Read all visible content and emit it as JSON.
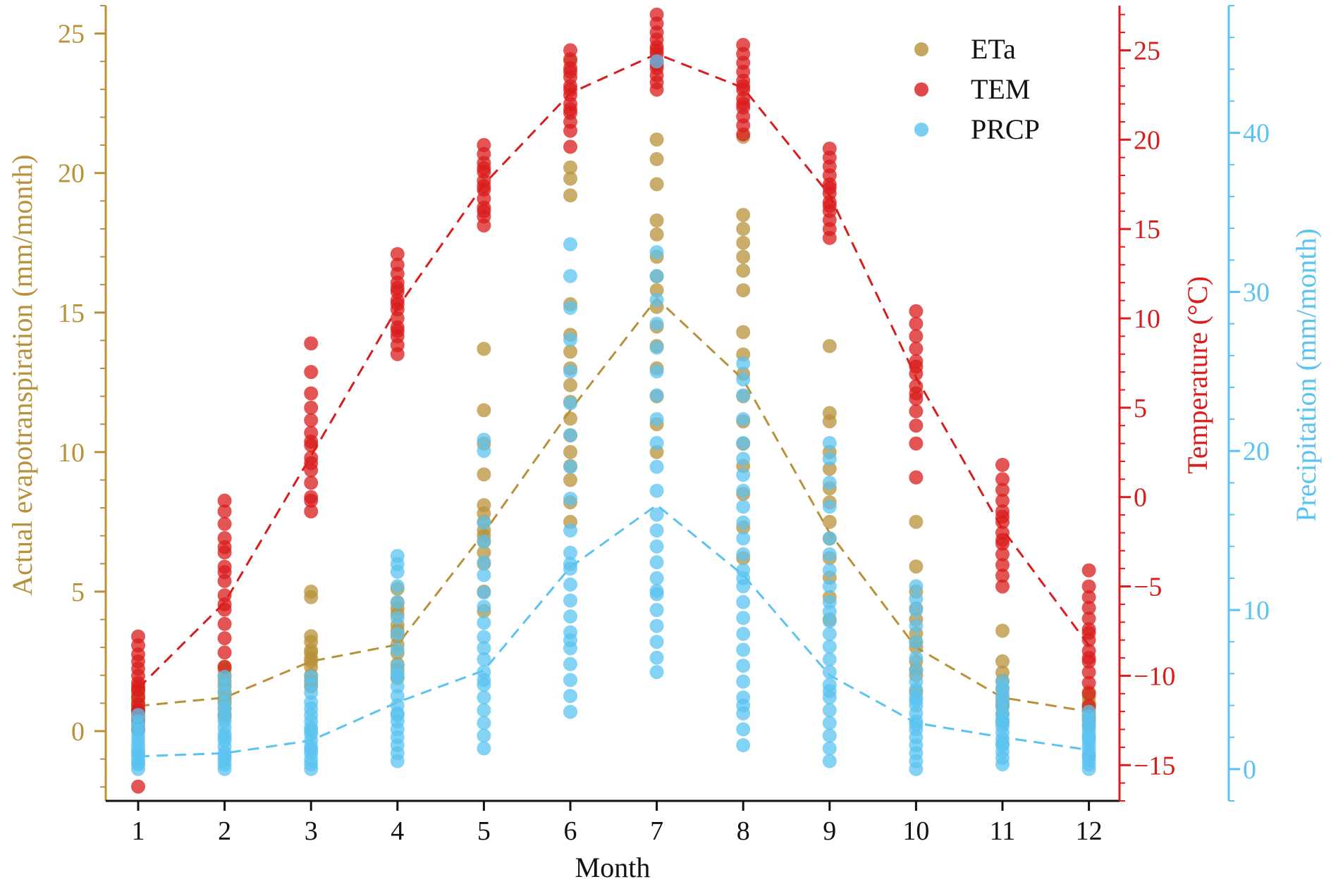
{
  "chart_data": {
    "type": "scatter",
    "xlabel": "Month",
    "x": [
      1,
      2,
      3,
      4,
      5,
      6,
      7,
      8,
      9,
      10,
      11,
      12
    ],
    "axes": {
      "left": {
        "label": "Actual evapotranspiration (mm/month)",
        "range": [
          -2.5,
          26
        ],
        "ticks": [
          0,
          5,
          10,
          15,
          20,
          25
        ],
        "minor_step": 1,
        "color": "#B8913A"
      },
      "right1": {
        "label": "Temperature (°C)",
        "range": [
          -17,
          27.5
        ],
        "ticks": [
          -15,
          -10,
          -5,
          0,
          5,
          10,
          15,
          20,
          25
        ],
        "tick_labels": [
          "−15",
          "−10",
          "−5",
          "0",
          "5",
          "10",
          "15",
          "20",
          "25"
        ],
        "minor_step": 1,
        "color": "#D91C1C"
      },
      "right2": {
        "label": "Precipitation (mm/month)",
        "range": [
          -2,
          48
        ],
        "ticks": [
          0,
          10,
          20,
          30,
          40
        ],
        "minor_step": 2,
        "color": "#5BC3F0"
      }
    },
    "legend": {
      "placement": "top-right"
    },
    "series": [
      {
        "name": "ETa",
        "axis": "left",
        "color": "#B8913A",
        "mean": [
          0.9,
          1.2,
          2.5,
          3.1,
          7.1,
          11.5,
          15.5,
          12.6,
          7.1,
          3.0,
          1.2,
          0.7
        ],
        "points": [
          [
            0.3,
            0.5,
            0.7,
            0.8,
            1.0,
            1.1,
            1.2,
            1.3,
            1.5,
            0.6,
            0.9,
            1.4
          ],
          [
            0.5,
            0.8,
            1.0,
            1.2,
            1.4,
            1.6,
            1.8,
            2.0,
            2.2,
            2.3,
            0.6,
            1.1
          ],
          [
            1.6,
            2.0,
            2.3,
            2.6,
            2.9,
            3.2,
            3.4,
            4.8,
            5.0,
            1.8,
            2.5,
            2.8
          ],
          [
            1.9,
            2.4,
            2.8,
            3.1,
            3.4,
            3.8,
            4.2,
            4.6,
            5.1,
            2.2,
            3.6,
            4.4
          ],
          [
            4.3,
            5.0,
            6.0,
            6.4,
            6.8,
            7.2,
            7.5,
            7.8,
            8.1,
            9.2,
            10.3,
            11.5,
            13.7,
            7.0
          ],
          [
            7.5,
            8.2,
            9.0,
            9.5,
            10.0,
            10.6,
            11.2,
            11.8,
            12.4,
            13.0,
            13.6,
            14.2,
            15.3,
            19.2,
            19.8,
            20.2,
            24.0
          ],
          [
            10.0,
            11.0,
            12.0,
            13.0,
            13.8,
            14.5,
            15.2,
            15.8,
            16.3,
            17.0,
            17.8,
            18.3,
            19.6,
            20.5,
            21.2
          ],
          [
            6.2,
            7.3,
            8.5,
            9.5,
            10.3,
            11.1,
            12.0,
            12.8,
            13.5,
            14.3,
            15.8,
            16.5,
            17.0,
            17.5,
            18.0,
            18.5,
            21.3
          ],
          [
            4.0,
            4.8,
            5.5,
            6.2,
            6.9,
            7.5,
            8.2,
            8.7,
            9.4,
            10.0,
            11.1,
            11.4,
            13.8
          ],
          [
            1.4,
            2.0,
            2.5,
            3.0,
            3.5,
            4.0,
            4.4,
            5.0,
            5.9,
            7.5,
            2.2,
            3.2
          ],
          [
            0.3,
            0.6,
            0.9,
            1.2,
            1.5,
            1.8,
            2.1,
            2.5,
            3.6,
            1.0
          ],
          [
            0.2,
            0.4,
            0.6,
            0.8,
            1.0,
            1.2,
            1.4,
            0.5,
            0.9
          ]
        ]
      },
      {
        "name": "TEM",
        "axis": "right1",
        "color": "#D91C1C",
        "mean": [
          -10.7,
          -5.9,
          2.3,
          10.6,
          17.5,
          22.6,
          24.8,
          22.9,
          16.9,
          6.7,
          -1.8,
          -8.3
        ],
        "points": [
          [
            -13.0,
            -12.5,
            -12.0,
            -11.6,
            -11.2,
            -10.8,
            -10.4,
            -10.0,
            -9.6,
            -9.2,
            -8.8,
            -8.3,
            -7.8,
            -16.2,
            -11.9,
            -10.6
          ],
          [
            -9.5,
            -8.7,
            -7.9,
            -7.1,
            -6.3,
            -5.5,
            -4.7,
            -3.9,
            -3.1,
            -2.3,
            -1.5,
            -0.8,
            -0.2,
            -6.0,
            -4.2,
            -2.8
          ],
          [
            -0.8,
            0.0,
            0.8,
            1.5,
            2.2,
            2.9,
            3.6,
            4.3,
            5.0,
            5.8,
            7.0,
            8.6,
            -0.2,
            1.9,
            3.1
          ],
          [
            8.0,
            8.5,
            9.0,
            9.5,
            10.0,
            10.5,
            11.0,
            11.5,
            12.0,
            12.5,
            13.0,
            13.6,
            9.3,
            10.8,
            11.7
          ],
          [
            15.2,
            15.7,
            16.2,
            16.7,
            17.2,
            17.7,
            18.2,
            18.7,
            19.2,
            19.7,
            16.0,
            17.4,
            18.4
          ],
          [
            20.5,
            21.0,
            21.5,
            22.0,
            22.5,
            23.0,
            23.5,
            24.0,
            24.5,
            25.0,
            19.6,
            21.7,
            22.8,
            23.8
          ],
          [
            22.8,
            23.2,
            23.6,
            24.0,
            24.4,
            24.8,
            25.2,
            25.6,
            26.0,
            26.5,
            27.0,
            24.2,
            25.0
          ],
          [
            20.3,
            20.8,
            21.3,
            21.8,
            22.3,
            22.8,
            23.3,
            23.8,
            24.3,
            24.8,
            25.3,
            22.0,
            23.0
          ],
          [
            14.5,
            15.0,
            15.5,
            16.0,
            16.5,
            17.0,
            17.5,
            18.0,
            18.5,
            19.0,
            19.5,
            16.3,
            17.3
          ],
          [
            3.0,
            4.0,
            4.8,
            5.5,
            6.2,
            6.9,
            7.6,
            8.3,
            9.0,
            9.7,
            10.4,
            1.1,
            5.8,
            7.3
          ],
          [
            -5.0,
            -4.4,
            -3.8,
            -3.2,
            -2.6,
            -2.0,
            -1.4,
            -0.8,
            -0.2,
            0.4,
            1.0,
            1.8,
            -2.4,
            -1.1
          ],
          [
            -11.7,
            -11.0,
            -10.4,
            -9.8,
            -9.2,
            -8.6,
            -8.0,
            -7.4,
            -6.8,
            -6.2,
            -5.6,
            -5.0,
            -4.1,
            -9.0,
            -7.6
          ]
        ]
      },
      {
        "name": "PRCP",
        "axis": "right2",
        "color": "#5BC3F0",
        "mean": [
          0.8,
          1.0,
          1.8,
          4.2,
          6.2,
          12.7,
          16.6,
          12.2,
          5.9,
          2.9,
          2.0,
          1.2
        ],
        "points": [
          [
            0.0,
            0.3,
            0.6,
            0.9,
            1.2,
            1.5,
            1.8,
            2.1,
            2.4,
            2.7,
            3.0,
            3.4,
            1.0,
            0.4
          ],
          [
            0.0,
            0.3,
            0.6,
            1.0,
            1.4,
            1.8,
            2.2,
            2.6,
            3.0,
            3.4,
            3.8,
            4.2,
            4.8,
            5.3,
            5.8,
            0.8,
            2.0
          ],
          [
            0.0,
            0.3,
            0.6,
            1.0,
            1.4,
            1.8,
            2.2,
            2.6,
            3.0,
            3.4,
            3.8,
            4.2,
            4.8,
            5.3,
            5.8,
            1.2,
            2.4
          ],
          [
            0.5,
            1.0,
            1.5,
            2.0,
            2.5,
            3.0,
            3.5,
            4.0,
            4.6,
            5.2,
            5.8,
            6.5,
            7.5,
            8.5,
            9.5,
            10.5,
            11.5,
            12.4,
            12.9,
            13.4,
            3.4,
            6.0
          ],
          [
            1.3,
            2.1,
            2.9,
            3.7,
            4.5,
            5.3,
            6.1,
            6.9,
            7.6,
            8.3,
            9.2,
            10.2,
            11.1,
            12.2,
            13.0,
            14.3,
            15.5,
            20.0,
            20.7,
            5.6
          ],
          [
            3.6,
            4.6,
            5.6,
            6.6,
            7.6,
            8.6,
            9.6,
            10.6,
            11.6,
            12.6,
            13.6,
            15.0,
            17.0,
            19.0,
            21.0,
            23.0,
            25.0,
            27.0,
            29.0,
            31.0,
            33.0,
            12.9,
            8.1
          ],
          [
            6.1,
            7.0,
            8.0,
            9.0,
            10.0,
            11.0,
            12.0,
            13.0,
            14.0,
            15.0,
            16.0,
            17.5,
            19.0,
            20.5,
            22.0,
            23.5,
            25.0,
            26.5,
            28.0,
            29.5,
            31.0,
            32.5,
            44.5,
            11.2
          ],
          [
            1.5,
            2.5,
            3.5,
            4.5,
            5.5,
            6.5,
            7.5,
            8.5,
            9.5,
            10.5,
            11.5,
            12.5,
            13.5,
            14.5,
            15.5,
            16.5,
            17.5,
            18.5,
            19.5,
            20.5,
            22.0,
            23.5,
            24.5,
            25.5,
            4.0,
            12.0
          ],
          [
            0.5,
            1.3,
            2.1,
            2.9,
            3.7,
            4.5,
            5.3,
            6.1,
            6.9,
            7.7,
            8.5,
            9.3,
            10.5,
            11.5,
            12.5,
            13.5,
            14.5,
            16.5,
            18.0,
            19.5,
            20.5,
            4.9,
            9.9
          ],
          [
            0.0,
            0.5,
            1.0,
            1.5,
            2.0,
            2.5,
            3.0,
            3.5,
            4.0,
            4.5,
            5.0,
            5.5,
            6.2,
            7.0,
            8.0,
            9.0,
            10.0,
            10.7,
            11.5,
            2.8,
            4.3
          ],
          [
            0.3,
            0.7,
            1.1,
            1.5,
            1.9,
            2.3,
            2.7,
            3.1,
            3.5,
            3.9,
            4.3,
            4.7,
            5.1,
            5.5,
            1.6,
            3.0
          ],
          [
            0.0,
            0.3,
            0.6,
            0.9,
            1.2,
            1.5,
            1.8,
            2.1,
            2.4,
            2.7,
            3.0,
            3.3,
            3.6,
            0.8,
            2.0
          ]
        ]
      }
    ]
  }
}
